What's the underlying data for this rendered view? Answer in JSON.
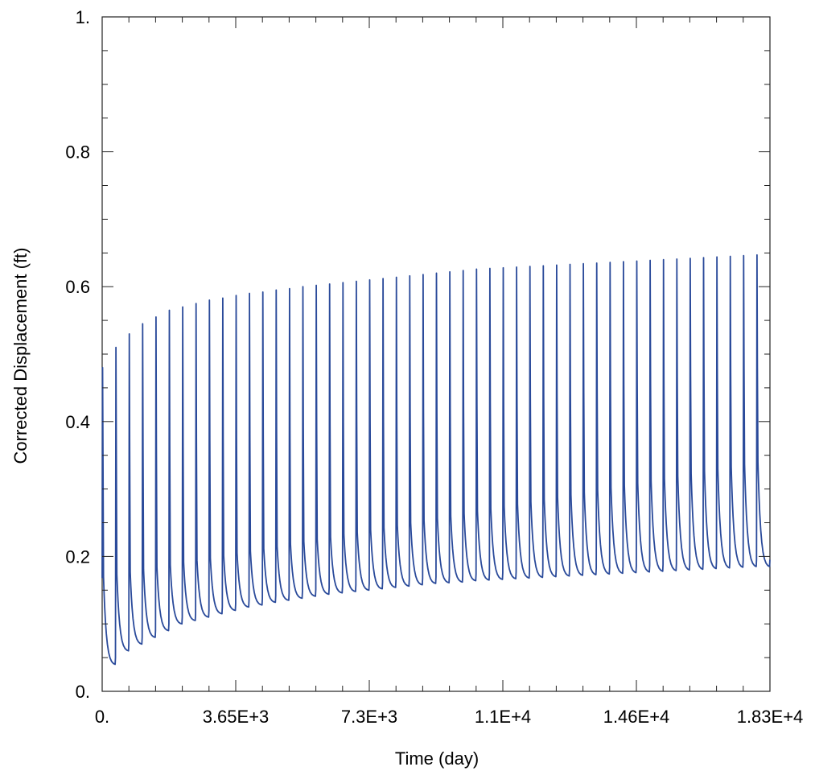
{
  "chart_data": {
    "type": "line",
    "title": "",
    "xlabel": "Time (day)",
    "ylabel": "Corrected Displacement (ft)",
    "xlim": [
      0,
      18250
    ],
    "ylim": [
      0,
      1
    ],
    "x_tick_values": [
      0,
      3650,
      7300,
      10950,
      14600,
      18250
    ],
    "x_tick_labels": [
      "0.",
      "3.65E+3",
      "7.3E+3",
      "1.1E+4",
      "1.46E+4",
      "1.83E+4"
    ],
    "y_tick_values": [
      0,
      0.2,
      0.4,
      0.6,
      0.8,
      1.0
    ],
    "y_tick_labels": [
      "0.",
      "0.2",
      "0.4",
      "0.6",
      "0.8",
      "1."
    ],
    "grid": false,
    "line_color": "#2a4a9a",
    "series": [
      {
        "cycles": {
          "period_days": 365,
          "count": 50,
          "peak_start": 0.48,
          "peak_end": 0.65,
          "trough_start": 0.04,
          "trough_end": 0.185,
          "mid_start": 0.17,
          "mid_end": 0.34,
          "upper_mid_start": 0.35,
          "upper_mid_end": 0.48
        },
        "x": [
          0,
          365,
          730,
          1095,
          1460,
          1825,
          2190,
          2555,
          2920,
          3285,
          3650,
          4015,
          4380,
          4745,
          5110,
          5475,
          5840,
          6205,
          6570,
          6935,
          7300,
          7665,
          8030,
          8395,
          8760,
          9125,
          9490,
          9855,
          10220,
          10585,
          10950,
          11315,
          11680,
          12045,
          12410,
          12775,
          13140,
          13505,
          13870,
          14235,
          14600,
          14965,
          15330,
          15695,
          16060,
          16425,
          16790,
          17155,
          17520,
          17885
        ],
        "peak_y": [
          0.48,
          0.51,
          0.53,
          0.545,
          0.555,
          0.565,
          0.57,
          0.575,
          0.58,
          0.583,
          0.587,
          0.59,
          0.592,
          0.595,
          0.597,
          0.6,
          0.602,
          0.604,
          0.606,
          0.608,
          0.61,
          0.612,
          0.614,
          0.616,
          0.618,
          0.62,
          0.622,
          0.624,
          0.626,
          0.627,
          0.628,
          0.629,
          0.63,
          0.631,
          0.632,
          0.633,
          0.634,
          0.635,
          0.636,
          0.637,
          0.638,
          0.639,
          0.64,
          0.641,
          0.642,
          0.643,
          0.644,
          0.645,
          0.646,
          0.647
        ],
        "trough_y": [
          0.04,
          0.06,
          0.07,
          0.08,
          0.09,
          0.1,
          0.105,
          0.11,
          0.115,
          0.12,
          0.125,
          0.128,
          0.132,
          0.135,
          0.138,
          0.141,
          0.144,
          0.146,
          0.148,
          0.15,
          0.152,
          0.154,
          0.156,
          0.158,
          0.16,
          0.161,
          0.162,
          0.164,
          0.165,
          0.166,
          0.167,
          0.168,
          0.169,
          0.17,
          0.171,
          0.172,
          0.173,
          0.174,
          0.175,
          0.176,
          0.177,
          0.178,
          0.179,
          0.18,
          0.181,
          0.182,
          0.183,
          0.184,
          0.185,
          0.185
        ]
      }
    ]
  }
}
